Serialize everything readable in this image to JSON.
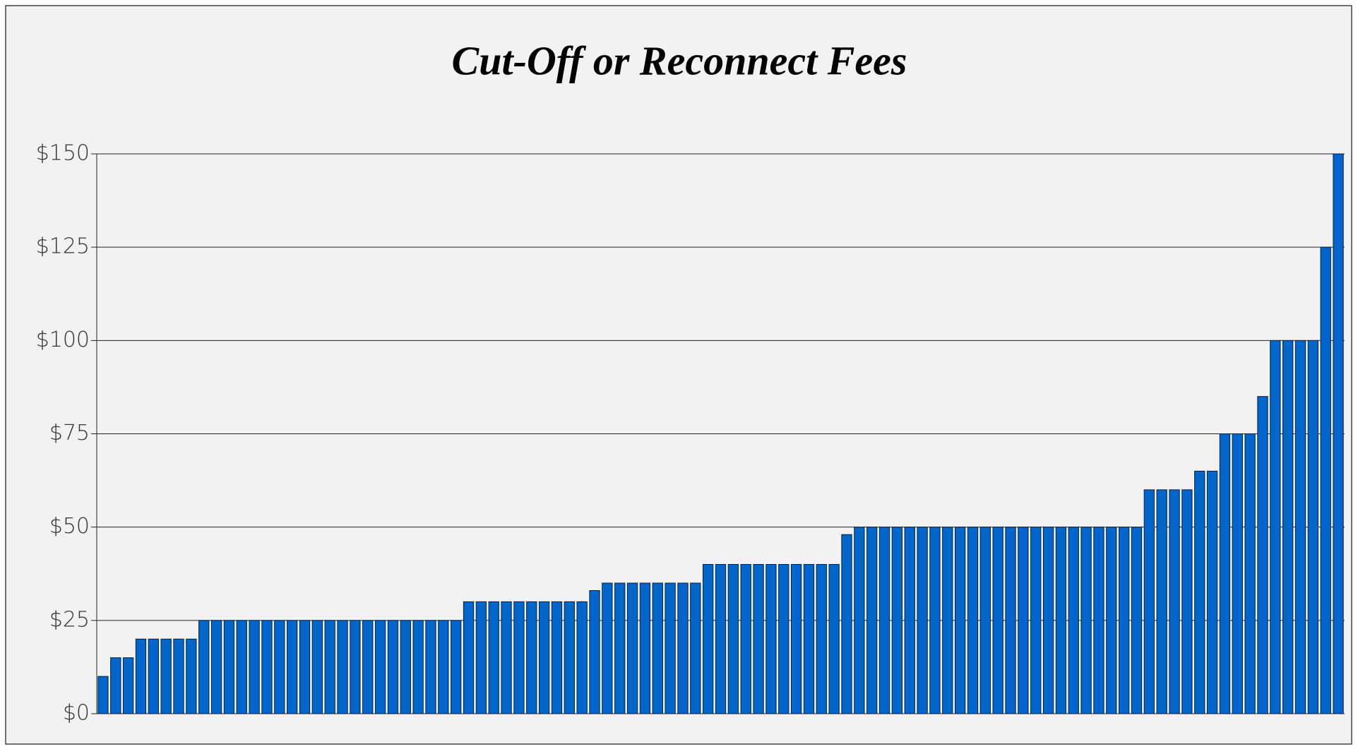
{
  "chart_data": {
    "type": "bar",
    "title": "Cut-Off or Reconnect Fees",
    "values": [
      10,
      15,
      15,
      20,
      20,
      20,
      20,
      20,
      25,
      25,
      25,
      25,
      25,
      25,
      25,
      25,
      25,
      25,
      25,
      25,
      25,
      25,
      25,
      25,
      25,
      25,
      25,
      25,
      25,
      30,
      30,
      30,
      30,
      30,
      30,
      30,
      30,
      30,
      30,
      33,
      35,
      35,
      35,
      35,
      35,
      35,
      35,
      35,
      40,
      40,
      40,
      40,
      40,
      40,
      40,
      40,
      40,
      40,
      40,
      48,
      50,
      50,
      50,
      50,
      50,
      50,
      50,
      50,
      50,
      50,
      50,
      50,
      50,
      50,
      50,
      50,
      50,
      50,
      50,
      50,
      50,
      50,
      50,
      60,
      60,
      60,
      60,
      65,
      65,
      75,
      75,
      75,
      85,
      100,
      100,
      100,
      100,
      125,
      150
    ],
    "color": "#0066cc",
    "ylim": [
      0,
      150
    ],
    "yticks": [
      {
        "value": 0,
        "label": "$0"
      },
      {
        "value": 25,
        "label": "$25"
      },
      {
        "value": 50,
        "label": "$50"
      },
      {
        "value": 75,
        "label": "$75"
      },
      {
        "value": 100,
        "label": "$100"
      },
      {
        "value": 125,
        "label": "$125"
      },
      {
        "value": 150,
        "label": "$150"
      }
    ],
    "grid": true
  }
}
